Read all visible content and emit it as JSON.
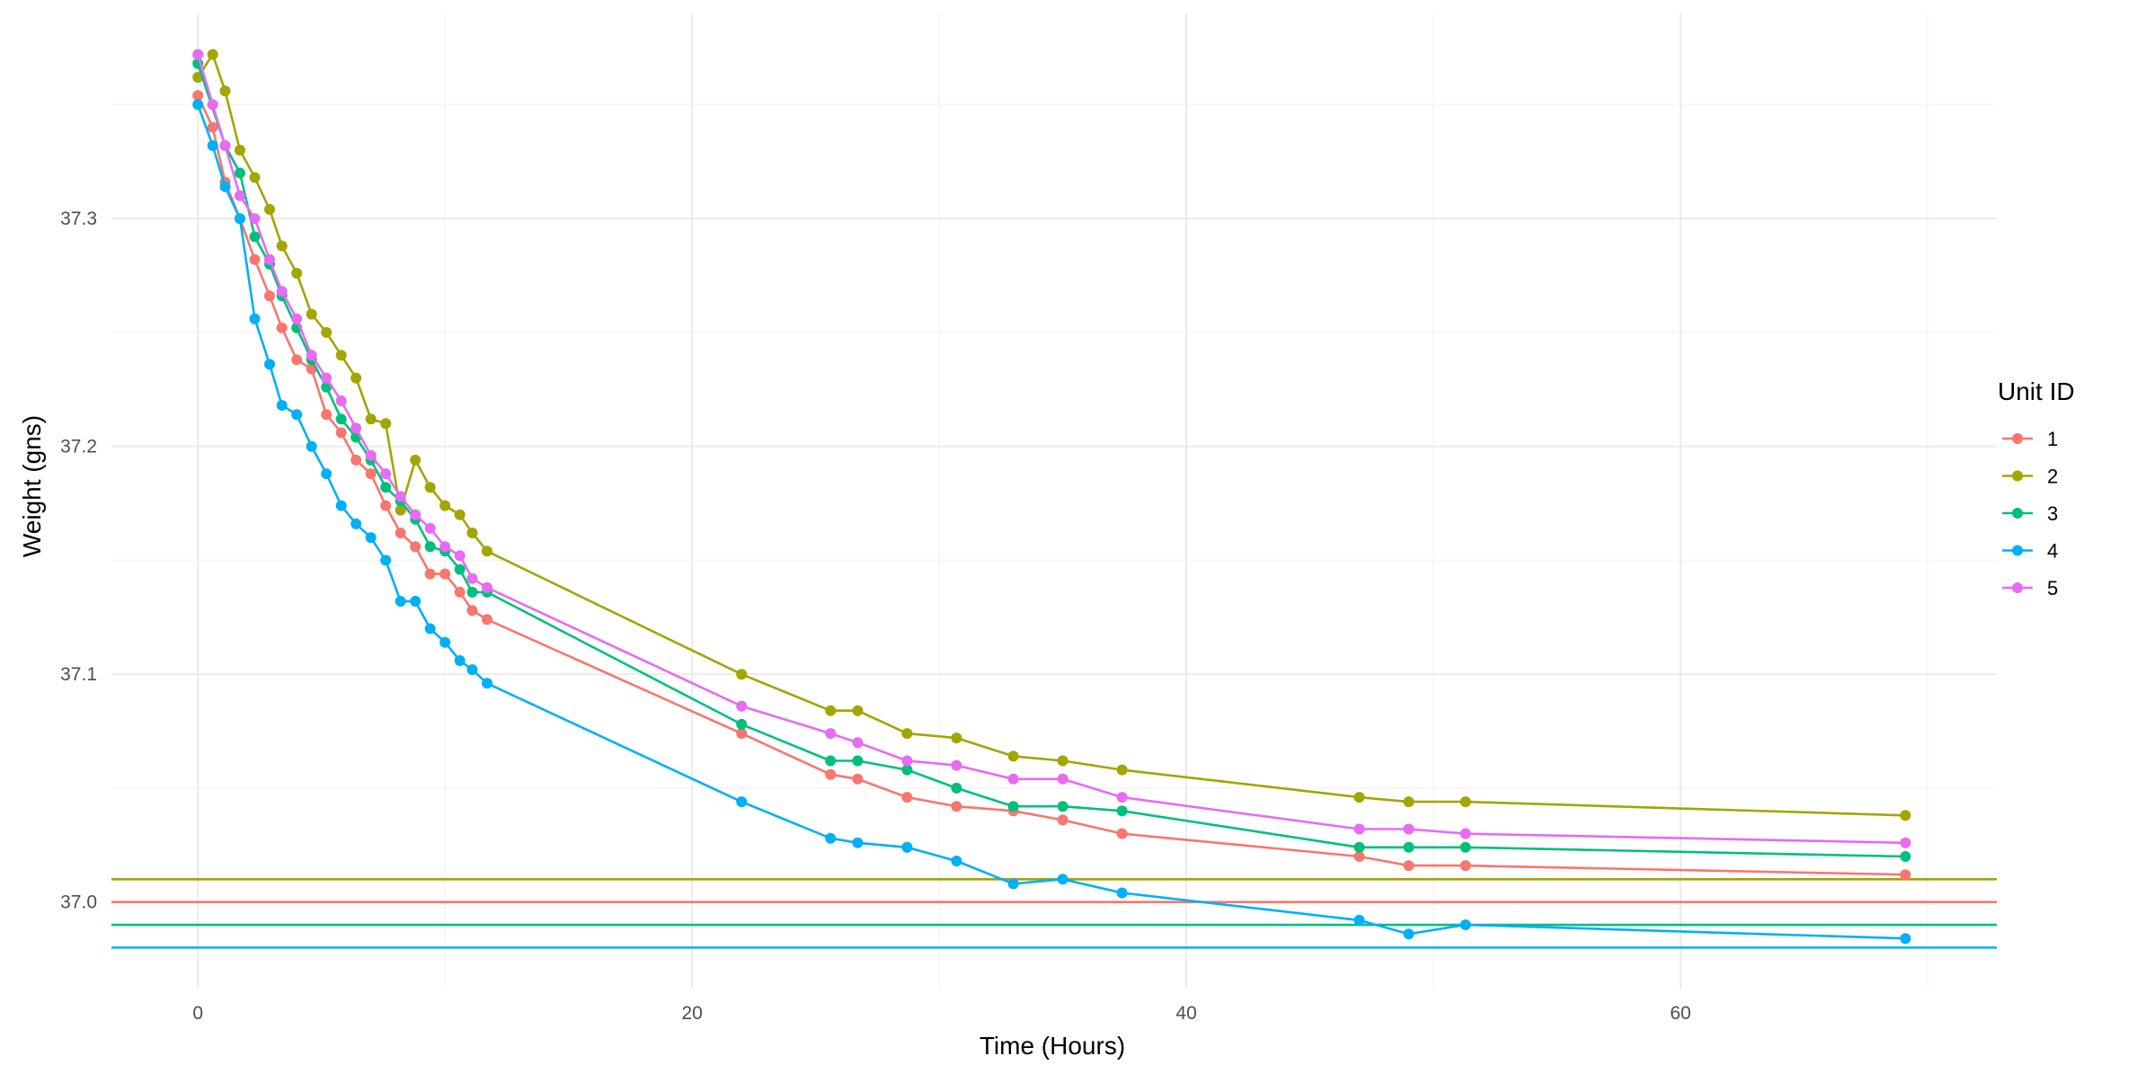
{
  "chart_data": {
    "type": "line",
    "xlabel": "Time (Hours)",
    "ylabel": "Weight (gns)",
    "xlim": [
      -3.5,
      72.8
    ],
    "ylim": [
      36.962,
      37.39
    ],
    "x_ticks": [
      0,
      20,
      40,
      60
    ],
    "y_ticks": [
      37.0,
      37.1,
      37.2,
      37.3
    ],
    "grid": true,
    "legend": {
      "title": "Unit ID",
      "position": "right"
    },
    "reference_lines": [
      {
        "y": 37.01,
        "color": "#A3A500"
      },
      {
        "y": 37.0,
        "color": "#F8766D"
      },
      {
        "y": 36.99,
        "color": "#00BF7D"
      },
      {
        "y": 36.98,
        "color": "#00B0F6"
      }
    ],
    "series": [
      {
        "name": "1",
        "color": "#F8766D",
        "points": [
          [
            0,
            37.354
          ],
          [
            0.6,
            37.34
          ],
          [
            1.1,
            37.316
          ],
          [
            1.7,
            37.3
          ],
          [
            2.3,
            37.282
          ],
          [
            2.9,
            37.266
          ],
          [
            3.4,
            37.252
          ],
          [
            4.0,
            37.238
          ],
          [
            4.6,
            37.234
          ],
          [
            5.2,
            37.214
          ],
          [
            5.8,
            37.206
          ],
          [
            6.4,
            37.194
          ],
          [
            7.0,
            37.188
          ],
          [
            7.6,
            37.174
          ],
          [
            8.2,
            37.162
          ],
          [
            8.8,
            37.156
          ],
          [
            9.4,
            37.144
          ],
          [
            10.0,
            37.144
          ],
          [
            10.6,
            37.136
          ],
          [
            11.1,
            37.128
          ],
          [
            11.7,
            37.124
          ],
          [
            22.0,
            37.074
          ],
          [
            25.6,
            37.056
          ],
          [
            26.7,
            37.054
          ],
          [
            28.7,
            37.046
          ],
          [
            30.7,
            37.042
          ],
          [
            33.0,
            37.04
          ],
          [
            35.0,
            37.036
          ],
          [
            37.4,
            37.03
          ],
          [
            47.0,
            37.02
          ],
          [
            49.0,
            37.016
          ],
          [
            51.3,
            37.016
          ],
          [
            69.1,
            37.012
          ]
        ]
      },
      {
        "name": "2",
        "color": "#A3A500",
        "points": [
          [
            0,
            37.362
          ],
          [
            0.6,
            37.372
          ],
          [
            1.1,
            37.356
          ],
          [
            1.7,
            37.33
          ],
          [
            2.3,
            37.318
          ],
          [
            2.9,
            37.304
          ],
          [
            3.4,
            37.288
          ],
          [
            4.0,
            37.276
          ],
          [
            4.6,
            37.258
          ],
          [
            5.2,
            37.25
          ],
          [
            5.8,
            37.24
          ],
          [
            6.4,
            37.23
          ],
          [
            7.0,
            37.212
          ],
          [
            7.6,
            37.21
          ],
          [
            8.2,
            37.172
          ],
          [
            8.8,
            37.194
          ],
          [
            9.4,
            37.182
          ],
          [
            10.0,
            37.174
          ],
          [
            10.6,
            37.17
          ],
          [
            11.1,
            37.162
          ],
          [
            11.7,
            37.154
          ],
          [
            22.0,
            37.1
          ],
          [
            25.6,
            37.084
          ],
          [
            26.7,
            37.084
          ],
          [
            28.7,
            37.074
          ],
          [
            30.7,
            37.072
          ],
          [
            33.0,
            37.064
          ],
          [
            35.0,
            37.062
          ],
          [
            37.4,
            37.058
          ],
          [
            47.0,
            37.046
          ],
          [
            49.0,
            37.044
          ],
          [
            51.3,
            37.044
          ],
          [
            69.1,
            37.038
          ]
        ]
      },
      {
        "name": "3",
        "color": "#00BF7D",
        "points": [
          [
            0,
            37.368
          ],
          [
            1.1,
            37.332
          ],
          [
            1.7,
            37.32
          ],
          [
            2.3,
            37.292
          ],
          [
            2.9,
            37.28
          ],
          [
            3.4,
            37.266
          ],
          [
            4.0,
            37.252
          ],
          [
            4.6,
            37.238
          ],
          [
            5.2,
            37.226
          ],
          [
            5.8,
            37.212
          ],
          [
            6.4,
            37.204
          ],
          [
            7.0,
            37.194
          ],
          [
            7.6,
            37.182
          ],
          [
            8.2,
            37.176
          ],
          [
            8.8,
            37.168
          ],
          [
            9.4,
            37.156
          ],
          [
            10.0,
            37.154
          ],
          [
            10.6,
            37.146
          ],
          [
            11.1,
            37.136
          ],
          [
            11.7,
            37.136
          ],
          [
            22.0,
            37.078
          ],
          [
            25.6,
            37.062
          ],
          [
            26.7,
            37.062
          ],
          [
            28.7,
            37.058
          ],
          [
            30.7,
            37.05
          ],
          [
            33.0,
            37.042
          ],
          [
            35.0,
            37.042
          ],
          [
            37.4,
            37.04
          ],
          [
            47.0,
            37.024
          ],
          [
            49.0,
            37.024
          ],
          [
            51.3,
            37.024
          ],
          [
            69.1,
            37.02
          ]
        ]
      },
      {
        "name": "4",
        "color": "#00B0F6",
        "points": [
          [
            0,
            37.35
          ],
          [
            0.6,
            37.332
          ],
          [
            1.1,
            37.314
          ],
          [
            1.7,
            37.3
          ],
          [
            2.3,
            37.256
          ],
          [
            2.9,
            37.236
          ],
          [
            3.4,
            37.218
          ],
          [
            4.0,
            37.214
          ],
          [
            4.6,
            37.2
          ],
          [
            5.2,
            37.188
          ],
          [
            5.8,
            37.174
          ],
          [
            6.4,
            37.166
          ],
          [
            7.0,
            37.16
          ],
          [
            7.6,
            37.15
          ],
          [
            8.2,
            37.132
          ],
          [
            8.8,
            37.132
          ],
          [
            9.4,
            37.12
          ],
          [
            10.0,
            37.114
          ],
          [
            10.6,
            37.106
          ],
          [
            11.1,
            37.102
          ],
          [
            11.7,
            37.096
          ],
          [
            22.0,
            37.044
          ],
          [
            25.6,
            37.028
          ],
          [
            26.7,
            37.026
          ],
          [
            28.7,
            37.024
          ],
          [
            30.7,
            37.018
          ],
          [
            33.0,
            37.008
          ],
          [
            35.0,
            37.01
          ],
          [
            37.4,
            37.004
          ],
          [
            47.0,
            36.992
          ],
          [
            49.0,
            36.986
          ],
          [
            51.3,
            36.99
          ],
          [
            69.1,
            36.984
          ]
        ]
      },
      {
        "name": "5",
        "color": "#E76BF3",
        "points": [
          [
            0,
            37.372
          ],
          [
            0.6,
            37.35
          ],
          [
            1.1,
            37.332
          ],
          [
            1.7,
            37.31
          ],
          [
            2.3,
            37.3
          ],
          [
            2.9,
            37.282
          ],
          [
            3.4,
            37.268
          ],
          [
            4.0,
            37.256
          ],
          [
            4.6,
            37.24
          ],
          [
            5.2,
            37.23
          ],
          [
            5.8,
            37.22
          ],
          [
            6.4,
            37.208
          ],
          [
            7.0,
            37.196
          ],
          [
            7.6,
            37.188
          ],
          [
            8.2,
            37.178
          ],
          [
            8.8,
            37.17
          ],
          [
            9.4,
            37.164
          ],
          [
            10.0,
            37.156
          ],
          [
            10.6,
            37.152
          ],
          [
            11.1,
            37.142
          ],
          [
            11.7,
            37.138
          ],
          [
            22.0,
            37.086
          ],
          [
            25.6,
            37.074
          ],
          [
            26.7,
            37.07
          ],
          [
            28.7,
            37.062
          ],
          [
            30.7,
            37.06
          ],
          [
            33.0,
            37.054
          ],
          [
            35.0,
            37.054
          ],
          [
            37.4,
            37.046
          ],
          [
            47.0,
            37.032
          ],
          [
            49.0,
            37.032
          ],
          [
            51.3,
            37.03
          ],
          [
            69.1,
            37.026
          ]
        ]
      }
    ]
  }
}
